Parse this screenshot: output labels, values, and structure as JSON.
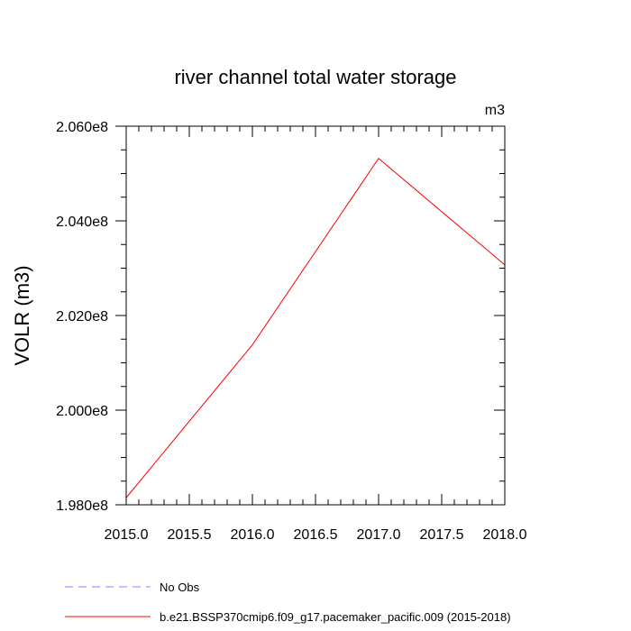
{
  "chart_data": {
    "type": "line",
    "title": "river channel total water storage",
    "units_label": "m3",
    "xlabel": "",
    "ylabel": "VOLR  (m3)",
    "xlim": [
      2015.0,
      2018.0
    ],
    "ylim": [
      198000000.0,
      206000000.0
    ],
    "x_ticks": [
      2015.0,
      2015.5,
      2016.0,
      2016.5,
      2017.0,
      2017.5,
      2018.0
    ],
    "x_tick_labels": [
      "2015.0",
      "2015.5",
      "2016.0",
      "2016.5",
      "2017.0",
      "2017.5",
      "2018.0"
    ],
    "y_ticks": [
      198000000.0,
      200000000.0,
      202000000.0,
      204000000.0,
      206000000.0
    ],
    "y_tick_labels": [
      "1.980e8",
      "2.000e8",
      "2.020e8",
      "2.040e8",
      "2.060e8"
    ],
    "series": [
      {
        "name": "b.e21.BSSP370cmip6.f09_g17.pacemaker_pacific.009 (2015-2018)",
        "color": "#ff0000",
        "dash": "solid",
        "x": [
          2015.0,
          2016.0,
          2017.0,
          2018.0
        ],
        "values": [
          198150000.0,
          201380000.0,
          205320000.0,
          203070000.0
        ]
      }
    ],
    "legend": [
      {
        "label": "No Obs",
        "color": "#8080ff",
        "dash": "dashed"
      },
      {
        "label": "b.e21.BSSP370cmip6.f09_g17.pacemaker_pacific.009 (2015-2018)",
        "color": "#ff0000",
        "dash": "solid"
      }
    ],
    "grid": false,
    "legend_position": "bottom"
  }
}
